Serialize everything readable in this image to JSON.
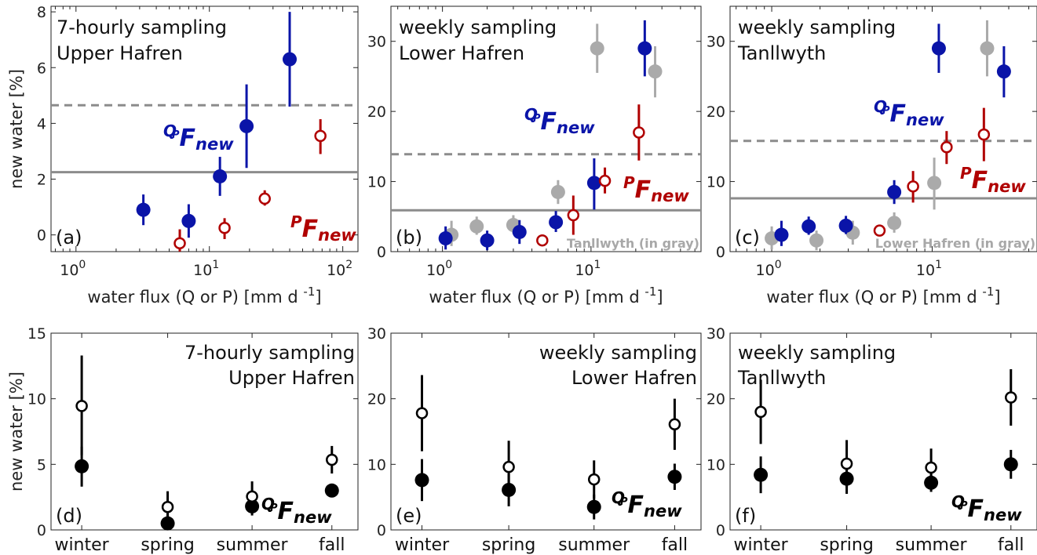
{
  "colors": {
    "blue": "#0a14a8",
    "red": "#b00000",
    "gray": "#aaaaaa",
    "black": "#000000",
    "line_gray": "#8c8c8c"
  },
  "axis_labels": {
    "new_water": "new water [%]",
    "water_flux": "water flux (Q or P) [mm d",
    "water_flux_exp": "-1",
    "water_flux_close": "]"
  },
  "fnew_label": {
    "Q": "Q",
    "P": "P",
    "F": "F",
    "sub": "new"
  },
  "chart_data": [
    {
      "id": "a",
      "type": "scatter",
      "xscale": "log",
      "xlim": [
        0.65,
        130
      ],
      "ylim": [
        -0.6,
        8.2
      ],
      "yticks": [
        0,
        2,
        4,
        6,
        8
      ],
      "xticks": [
        1,
        10,
        100
      ],
      "xtick_labels": [
        {
          "b": "10",
          "e": "0"
        },
        {
          "b": "10",
          "e": "1"
        },
        {
          "b": "10",
          "e": "2"
        }
      ],
      "panel_label": "(a)",
      "title": [
        "7-hourly sampling",
        "Upper Hafren"
      ],
      "hlines": [
        {
          "y": 2.25,
          "style": "solid"
        },
        {
          "y": 4.65,
          "style": "dashed"
        }
      ],
      "series": [
        {
          "name": "QPFnew",
          "color": "blue",
          "filled": true,
          "points": [
            {
              "x": 3.2,
              "y": 0.9,
              "lo": 0.35,
              "hi": 1.45
            },
            {
              "x": 7,
              "y": 0.5,
              "lo": -0.1,
              "hi": 1.1
            },
            {
              "x": 12,
              "y": 2.1,
              "lo": 1.4,
              "hi": 2.8
            },
            {
              "x": 19,
              "y": 3.9,
              "lo": 2.4,
              "hi": 5.4
            },
            {
              "x": 40,
              "y": 6.3,
              "lo": 4.6,
              "hi": 8.0
            }
          ]
        },
        {
          "name": "PFnew",
          "color": "red",
          "filled": false,
          "points": [
            {
              "x": 6,
              "y": -0.3,
              "lo": -0.6,
              "hi": 0.2
            },
            {
              "x": 13,
              "y": 0.25,
              "lo": -0.15,
              "hi": 0.6
            },
            {
              "x": 26,
              "y": 1.3,
              "lo": 1.05,
              "hi": 1.6
            },
            {
              "x": 68,
              "y": 3.55,
              "lo": 2.9,
              "hi": 4.15
            }
          ]
        }
      ]
    },
    {
      "id": "b",
      "type": "scatter",
      "xscale": "log",
      "xlim": [
        0.45,
        55
      ],
      "ylim": [
        0,
        35
      ],
      "yticks": [
        0,
        10,
        20,
        30
      ],
      "xticks": [
        1,
        10
      ],
      "xtick_labels": [
        {
          "b": "10",
          "e": "0"
        },
        {
          "b": "10",
          "e": "1"
        }
      ],
      "panel_label": "(b)",
      "title": [
        "weekly sampling",
        "Lower Hafren"
      ],
      "note": "Tanllwyth (in gray)",
      "hlines": [
        {
          "y": 5.9,
          "style": "solid"
        },
        {
          "y": 13.9,
          "style": "dashed"
        }
      ],
      "series": [
        {
          "name": "Tanllwyth",
          "color": "gray",
          "filled": true,
          "points": [
            {
              "x": 1.15,
              "y": 2.4,
              "lo": 0.8,
              "hi": 4.4
            },
            {
              "x": 1.7,
              "y": 3.6,
              "lo": 2.4,
              "hi": 5.0
            },
            {
              "x": 3.0,
              "y": 3.8,
              "lo": 2.6,
              "hi": 5.2
            },
            {
              "x": 6.0,
              "y": 8.5,
              "lo": 6.8,
              "hi": 10.2
            },
            {
              "x": 11.0,
              "y": 29.0,
              "lo": 25.5,
              "hi": 32.5
            },
            {
              "x": 27.0,
              "y": 25.7,
              "lo": 22.0,
              "hi": 29.3
            }
          ]
        },
        {
          "name": "QPFnew",
          "color": "blue",
          "filled": true,
          "points": [
            {
              "x": 1.05,
              "y": 1.9,
              "lo": 0.3,
              "hi": 3.6
            },
            {
              "x": 2.0,
              "y": 1.6,
              "lo": 0.2,
              "hi": 3.0
            },
            {
              "x": 3.3,
              "y": 2.8,
              "lo": 1.1,
              "hi": 4.5
            },
            {
              "x": 5.8,
              "y": 4.2,
              "lo": 2.8,
              "hi": 5.8
            },
            {
              "x": 10.5,
              "y": 9.8,
              "lo": 6.0,
              "hi": 13.3
            },
            {
              "x": 23.0,
              "y": 29.0,
              "lo": 25.0,
              "hi": 33.0
            }
          ]
        },
        {
          "name": "PFnew",
          "color": "red",
          "filled": false,
          "points": [
            {
              "x": 4.7,
              "y": 1.6,
              "lo": 1.2,
              "hi": 2.0
            },
            {
              "x": 7.6,
              "y": 5.2,
              "lo": 2.4,
              "hi": 8.0
            },
            {
              "x": 12.4,
              "y": 10.1,
              "lo": 8.3,
              "hi": 12.0
            },
            {
              "x": 21.0,
              "y": 17.0,
              "lo": 13.0,
              "hi": 21.0
            }
          ]
        }
      ]
    },
    {
      "id": "c",
      "type": "scatter",
      "xscale": "log",
      "xlim": [
        0.55,
        45
      ],
      "ylim": [
        0,
        35
      ],
      "yticks": [
        0,
        10,
        20,
        30
      ],
      "xticks": [
        1,
        10
      ],
      "xtick_labels": [
        {
          "b": "10",
          "e": "0"
        },
        {
          "b": "10",
          "e": "1"
        }
      ],
      "panel_label": "(c)",
      "title": [
        "weekly sampling",
        "Tanllwyth"
      ],
      "note": "Lower Hafren (in gray)",
      "hlines": [
        {
          "y": 7.6,
          "style": "solid"
        },
        {
          "y": 15.8,
          "style": "dashed"
        }
      ],
      "series": [
        {
          "name": "Lower Hafren",
          "color": "gray",
          "filled": true,
          "points": [
            {
              "x": 1.0,
              "y": 1.9,
              "lo": 0.3,
              "hi": 3.6
            },
            {
              "x": 1.9,
              "y": 1.6,
              "lo": 0.2,
              "hi": 3.0
            },
            {
              "x": 3.2,
              "y": 2.7,
              "lo": 1.0,
              "hi": 4.4
            },
            {
              "x": 5.8,
              "y": 4.1,
              "lo": 2.7,
              "hi": 5.6
            },
            {
              "x": 10.3,
              "y": 9.8,
              "lo": 6.0,
              "hi": 13.4
            },
            {
              "x": 22.0,
              "y": 29.0,
              "lo": 25.0,
              "hi": 33.0
            }
          ]
        },
        {
          "name": "QPFnew",
          "color": "blue",
          "filled": true,
          "points": [
            {
              "x": 1.15,
              "y": 2.4,
              "lo": 0.8,
              "hi": 4.4
            },
            {
              "x": 1.7,
              "y": 3.6,
              "lo": 2.4,
              "hi": 5.0
            },
            {
              "x": 2.9,
              "y": 3.7,
              "lo": 2.5,
              "hi": 5.1
            },
            {
              "x": 5.8,
              "y": 8.5,
              "lo": 6.8,
              "hi": 10.2
            },
            {
              "x": 11.0,
              "y": 29.0,
              "lo": 25.5,
              "hi": 32.5
            },
            {
              "x": 28.0,
              "y": 25.7,
              "lo": 22.0,
              "hi": 29.3
            }
          ]
        },
        {
          "name": "PFnew",
          "color": "red",
          "filled": false,
          "points": [
            {
              "x": 4.7,
              "y": 3.0,
              "lo": 2.2,
              "hi": 3.8
            },
            {
              "x": 7.6,
              "y": 9.3,
              "lo": 7.0,
              "hi": 11.5
            },
            {
              "x": 12.3,
              "y": 14.9,
              "lo": 12.5,
              "hi": 17.2
            },
            {
              "x": 21.0,
              "y": 16.7,
              "lo": 12.9,
              "hi": 20.5
            }
          ]
        }
      ]
    },
    {
      "id": "d",
      "type": "scatter",
      "xscale": "category",
      "ylim": [
        0,
        15
      ],
      "yticks": [
        0,
        5,
        10,
        15
      ],
      "categories": [
        "winter",
        "spring",
        "summer",
        "fall"
      ],
      "panel_label": "(d)",
      "title": [
        "7-hourly sampling",
        "Upper Hafren"
      ],
      "series": [
        {
          "name": "QPFnew",
          "color": "black",
          "filled": true,
          "points": [
            {
              "x": 0,
              "y": 4.85,
              "lo": 3.3,
              "hi": 6.35
            },
            {
              "x": 1,
              "y": 0.5,
              "lo": 0.0,
              "hi": 1.2
            },
            {
              "x": 2,
              "y": 1.8,
              "lo": 1.1,
              "hi": 2.5
            },
            {
              "x": 3,
              "y": 3.0,
              "lo": 2.7,
              "hi": 3.3
            }
          ]
        },
        {
          "name": "PFnew",
          "color": "black",
          "filled": false,
          "points": [
            {
              "x": 0,
              "y": 9.45,
              "lo": 5.7,
              "hi": 13.3
            },
            {
              "x": 1,
              "y": 1.75,
              "lo": 0.6,
              "hi": 2.95
            },
            {
              "x": 2,
              "y": 2.55,
              "lo": 1.4,
              "hi": 3.7
            },
            {
              "x": 3,
              "y": 5.35,
              "lo": 4.3,
              "hi": 6.4
            }
          ]
        }
      ]
    },
    {
      "id": "e",
      "type": "scatter",
      "xscale": "category",
      "ylim": [
        0,
        30
      ],
      "yticks": [
        0,
        10,
        20,
        30
      ],
      "categories": [
        "winter",
        "spring",
        "summer",
        "fall"
      ],
      "panel_label": "(e)",
      "title": [
        "weekly sampling",
        "Lower Hafren"
      ],
      "series": [
        {
          "name": "QPFnew",
          "color": "black",
          "filled": true,
          "points": [
            {
              "x": 0,
              "y": 7.6,
              "lo": 4.4,
              "hi": 10.8
            },
            {
              "x": 1,
              "y": 6.1,
              "lo": 3.6,
              "hi": 8.6
            },
            {
              "x": 2,
              "y": 3.5,
              "lo": 1.6,
              "hi": 5.4
            },
            {
              "x": 3,
              "y": 8.1,
              "lo": 6.1,
              "hi": 10.1
            }
          ]
        },
        {
          "name": "PFnew",
          "color": "black",
          "filled": false,
          "points": [
            {
              "x": 0,
              "y": 17.8,
              "lo": 12.0,
              "hi": 23.6
            },
            {
              "x": 1,
              "y": 9.6,
              "lo": 5.6,
              "hi": 13.6
            },
            {
              "x": 2,
              "y": 7.7,
              "lo": 4.8,
              "hi": 10.6
            },
            {
              "x": 3,
              "y": 16.1,
              "lo": 12.2,
              "hi": 20.0
            }
          ]
        }
      ]
    },
    {
      "id": "f",
      "type": "scatter",
      "xscale": "category",
      "ylim": [
        0,
        30
      ],
      "yticks": [
        0,
        10,
        20,
        30
      ],
      "categories": [
        "winter",
        "spring",
        "summer",
        "fall"
      ],
      "panel_label": "(f)",
      "title": [
        "weekly sampling",
        "Tanllwyth"
      ],
      "series": [
        {
          "name": "QPFnew",
          "color": "black",
          "filled": true,
          "points": [
            {
              "x": 0,
              "y": 8.4,
              "lo": 5.6,
              "hi": 11.2
            },
            {
              "x": 1,
              "y": 7.8,
              "lo": 5.5,
              "hi": 10.1
            },
            {
              "x": 2,
              "y": 7.2,
              "lo": 5.8,
              "hi": 8.6
            },
            {
              "x": 3,
              "y": 10.0,
              "lo": 7.8,
              "hi": 12.2
            }
          ]
        },
        {
          "name": "PFnew",
          "color": "black",
          "filled": false,
          "points": [
            {
              "x": 0,
              "y": 18.0,
              "lo": 13.1,
              "hi": 22.9
            },
            {
              "x": 1,
              "y": 10.1,
              "lo": 6.5,
              "hi": 13.7
            },
            {
              "x": 2,
              "y": 9.5,
              "lo": 6.6,
              "hi": 12.4
            },
            {
              "x": 3,
              "y": 20.2,
              "lo": 15.9,
              "hi": 24.5
            }
          ]
        }
      ]
    }
  ]
}
